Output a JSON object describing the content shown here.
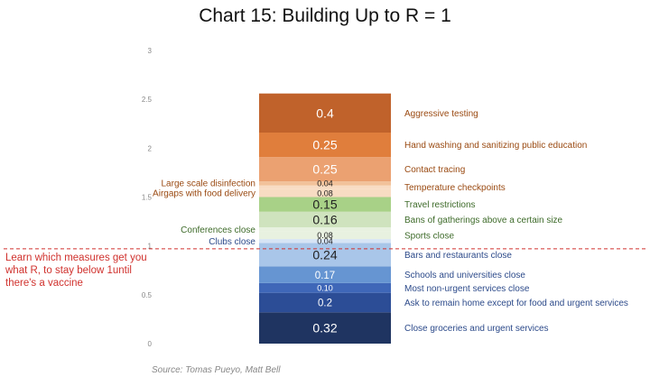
{
  "title": "Chart 15: Building Up to R = 1",
  "source": "Source: Tomas Pueyo, Matt Bell",
  "callout": "Learn which measures get you what R, to stay below 1until there's a vaccine",
  "chart_data": {
    "type": "bar",
    "stacked": true,
    "title": "Chart 15: Building Up to R = 1",
    "xlabel": "",
    "ylabel": "",
    "ylim": [
      0,
      3
    ],
    "yticks": [
      0,
      0.5,
      1,
      1.5,
      2,
      2.5,
      3
    ],
    "ytick_labels": [
      "0",
      "0.5",
      "1",
      "1.5",
      "2",
      "2.5",
      "3"
    ],
    "grid": false,
    "reference_line": {
      "y": 0.97,
      "style": "dashed",
      "color": "#d0312d"
    },
    "segments": [
      {
        "label": "Close groceries and urgent services",
        "value": 0.32,
        "value_label": "0.32",
        "color": "#1f3461",
        "label_side": "right",
        "label_color": "#2c4a8a"
      },
      {
        "label": "Ask to remain home except for food and urgent services",
        "value": 0.2,
        "value_label": "0.2",
        "color": "#2c4d96",
        "label_side": "right",
        "label_color": "#2c4a8a"
      },
      {
        "label": "Most non-urgent services close",
        "value": 0.1,
        "value_label": "0.10",
        "color": "#3f67b8",
        "label_side": "right",
        "label_color": "#2c4a8a"
      },
      {
        "label": "Schools and universities close",
        "value": 0.17,
        "value_label": "0.17",
        "color": "#6695d2",
        "label_side": "right",
        "label_color": "#2c4a8a"
      },
      {
        "label": "Bars and restaurants close",
        "value": 0.24,
        "value_label": "0.24",
        "color": "#a9c6e9",
        "label_side": "right",
        "label_color": "#2c4a8a"
      },
      {
        "label": "Clubs close",
        "value": 0.04,
        "value_label": "0.04",
        "color": "#d7e4f5",
        "label_side": "left",
        "label_color": "#2c4a8a"
      },
      {
        "label": "Sports close",
        "value": 0.08,
        "value_label": "0.08",
        "color": "#e8f1e0",
        "label_side": "right",
        "label_color": "#3e6b2a"
      },
      {
        "label": "Conferences close",
        "value": 0.04,
        "value_label": "",
        "color": "#e8f1e0",
        "label_side": "left",
        "label_color": "#3e6b2a"
      },
      {
        "label": "Bans of gatherings above a certain size",
        "value": 0.16,
        "value_label": "0.16",
        "color": "#cfe3be",
        "label_side": "right",
        "label_color": "#3e6b2a"
      },
      {
        "label": "Travel restrictions",
        "value": 0.15,
        "value_label": "0.15",
        "color": "#a8d187",
        "label_side": "right",
        "label_color": "#3e6b2a"
      },
      {
        "label": "Airgaps with food delivery",
        "value": 0.08,
        "value_label": "0.08",
        "color": "#f8dcc3",
        "label_side": "left",
        "label_color": "#9a4a12"
      },
      {
        "label": "Temperature checkpoints",
        "value": 0.04,
        "value_label": "",
        "color": "#f8dcc3",
        "label_side": "right",
        "label_color": "#9a4a12"
      },
      {
        "label": "Large scale disinfection",
        "value": 0.04,
        "value_label": "0.04",
        "color": "#f2c29a",
        "label_side": "left",
        "label_color": "#9a4a12"
      },
      {
        "label": "Contact tracing",
        "value": 0.25,
        "value_label": "0.25",
        "color": "#eba171",
        "label_side": "right",
        "label_color": "#9a4a12"
      },
      {
        "label": "Hand washing and sanitizing public education",
        "value": 0.25,
        "value_label": "0.25",
        "color": "#e07e3c",
        "label_side": "right",
        "label_color": "#9a4a12"
      },
      {
        "label": "Aggressive testing",
        "value": 0.4,
        "value_label": "0.4",
        "color": "#c0622b",
        "label_side": "right",
        "label_color": "#9a4a12"
      }
    ]
  }
}
